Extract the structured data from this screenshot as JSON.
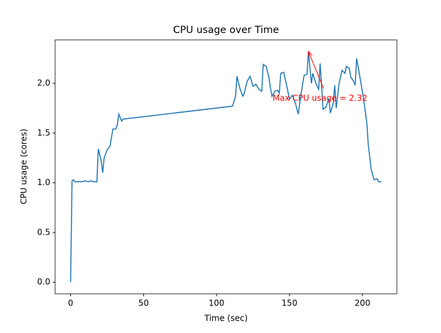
{
  "chart_data": {
    "type": "line",
    "title": "CPU usage over Time",
    "x_label": "Time (sec)",
    "y_label": "CPU usage (cores)",
    "x": [
      0,
      1,
      2,
      3,
      5,
      8,
      10,
      12,
      14,
      16,
      18,
      19,
      21,
      22,
      23,
      25,
      27,
      29,
      31,
      32,
      33,
      35,
      36,
      111,
      113,
      114,
      116,
      118,
      119,
      121,
      123,
      125,
      127,
      129,
      131,
      132,
      134,
      136,
      137,
      138,
      140,
      142,
      143,
      144,
      146,
      148,
      150,
      152,
      154,
      156,
      158,
      160,
      162,
      163,
      165,
      166,
      168,
      170,
      171,
      173,
      175,
      177,
      178,
      180,
      181,
      182,
      184,
      186,
      188,
      189,
      191,
      192,
      194,
      195,
      196,
      199,
      201,
      203,
      204,
      206,
      208,
      210,
      211,
      213
    ],
    "values": [
      0,
      1.02,
      1.03,
      1.01,
      1.01,
      1.01,
      1.02,
      1.01,
      1.02,
      1.01,
      1.01,
      1.34,
      1.22,
      1.1,
      1.25,
      1.33,
      1.37,
      1.54,
      1.54,
      1.58,
      1.69,
      1.62,
      1.64,
      1.77,
      1.87,
      2.07,
      1.95,
      1.87,
      1.9,
      2.02,
      2.07,
      1.97,
      1.99,
      1.94,
      1.92,
      2.19,
      2.17,
      2.05,
      1.95,
      1.87,
      1.92,
      1.93,
      1.9,
      2.1,
      2.11,
      1.98,
      1.84,
      1.88,
      1.8,
      1.69,
      1.9,
      2.08,
      2.09,
      2.32,
      2.0,
      2.1,
      2.0,
      1.94,
      2.2,
      1.74,
      1.76,
      1.85,
      1.7,
      1.8,
      1.98,
      1.75,
      2.0,
      2.13,
      2.1,
      2.17,
      2.15,
      2.06,
      2.02,
      1.98,
      2.25,
      2.0,
      1.82,
      1.6,
      1.38,
      1.13,
      1.03,
      1.04,
      1.01,
      1.01
    ],
    "color": "#1f77b4",
    "annotation": "Max CPU usage = 2.32",
    "annotation_color": "#ff0000",
    "xlim": [
      -10.6,
      223.6
    ],
    "ylim": [
      -0.116,
      2.436
    ],
    "xticks": [
      0,
      50,
      100,
      150,
      200
    ],
    "yticks": [
      {
        "value": 0,
        "label": "0.0"
      },
      0.5,
      {
        "value": 1,
        "label": "1.0"
      },
      1.5,
      {
        "value": 2,
        "label": "2.0"
      }
    ],
    "grid": false
  }
}
